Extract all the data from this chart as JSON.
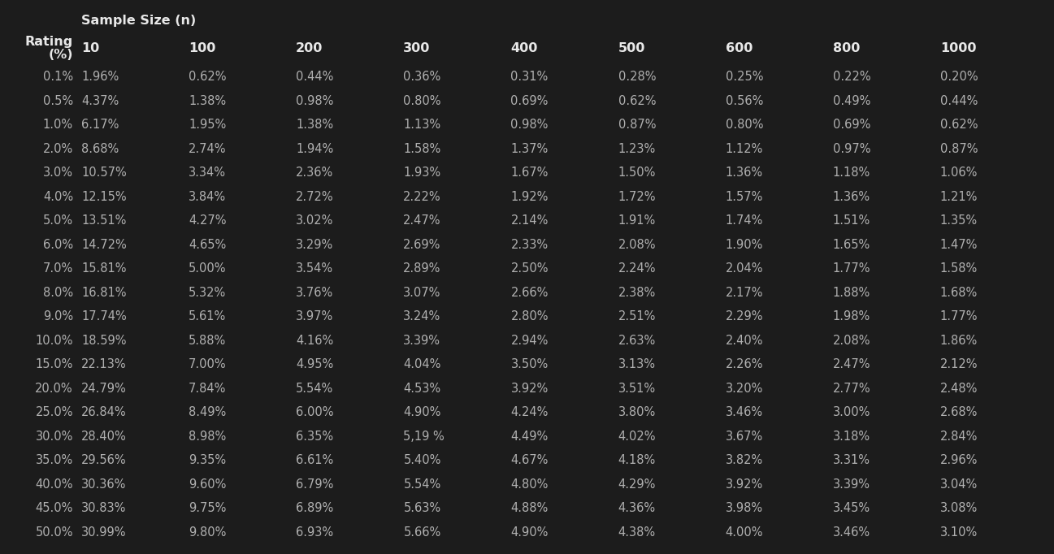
{
  "sample_sizes": [
    "10",
    "100",
    "200",
    "300",
    "400",
    "500",
    "600",
    "800",
    "1000"
  ],
  "ratings": [
    "0.1%",
    "0.5%",
    "1.0%",
    "2.0%",
    "3.0%",
    "4.0%",
    "5.0%",
    "6.0%",
    "7.0%",
    "8.0%",
    "9.0%",
    "10.0%",
    "15.0%",
    "20.0%",
    "25.0%",
    "30.0%",
    "35.0%",
    "40.0%",
    "45.0%",
    "50.0%"
  ],
  "table_data": [
    [
      "1.96%",
      "0.62%",
      "0.44%",
      "0.36%",
      "0.31%",
      "0.28%",
      "0.25%",
      "0.22%",
      "0.20%"
    ],
    [
      "4.37%",
      "1.38%",
      "0.98%",
      "0.80%",
      "0.69%",
      "0.62%",
      "0.56%",
      "0.49%",
      "0.44%"
    ],
    [
      "6.17%",
      "1.95%",
      "1.38%",
      "1.13%",
      "0.98%",
      "0.87%",
      "0.80%",
      "0.69%",
      "0.62%"
    ],
    [
      "8.68%",
      "2.74%",
      "1.94%",
      "1.58%",
      "1.37%",
      "1.23%",
      "1.12%",
      "0.97%",
      "0.87%"
    ],
    [
      "10.57%",
      "3.34%",
      "2.36%",
      "1.93%",
      "1.67%",
      "1.50%",
      "1.36%",
      "1.18%",
      "1.06%"
    ],
    [
      "12.15%",
      "3.84%",
      "2.72%",
      "2.22%",
      "1.92%",
      "1.72%",
      "1.57%",
      "1.36%",
      "1.21%"
    ],
    [
      "13.51%",
      "4.27%",
      "3.02%",
      "2.47%",
      "2.14%",
      "1.91%",
      "1.74%",
      "1.51%",
      "1.35%"
    ],
    [
      "14.72%",
      "4.65%",
      "3.29%",
      "2.69%",
      "2.33%",
      "2.08%",
      "1.90%",
      "1.65%",
      "1.47%"
    ],
    [
      "15.81%",
      "5.00%",
      "3.54%",
      "2.89%",
      "2.50%",
      "2.24%",
      "2.04%",
      "1.77%",
      "1.58%"
    ],
    [
      "16.81%",
      "5.32%",
      "3.76%",
      "3.07%",
      "2.66%",
      "2.38%",
      "2.17%",
      "1.88%",
      "1.68%"
    ],
    [
      "17.74%",
      "5.61%",
      "3.97%",
      "3.24%",
      "2.80%",
      "2.51%",
      "2.29%",
      "1.98%",
      "1.77%"
    ],
    [
      "18.59%",
      "5.88%",
      "4.16%",
      "3.39%",
      "2.94%",
      "2.63%",
      "2.40%",
      "2.08%",
      "1.86%"
    ],
    [
      "22.13%",
      "7.00%",
      "4.95%",
      "4.04%",
      "3.50%",
      "3.13%",
      "2.26%",
      "2.47%",
      "2.12%"
    ],
    [
      "24.79%",
      "7.84%",
      "5.54%",
      "4.53%",
      "3.92%",
      "3.51%",
      "3.20%",
      "2.77%",
      "2.48%"
    ],
    [
      "26.84%",
      "8.49%",
      "6.00%",
      "4.90%",
      "4.24%",
      "3.80%",
      "3.46%",
      "3.00%",
      "2.68%"
    ],
    [
      "28.40%",
      "8.98%",
      "6.35%",
      "5,19 %",
      "4.49%",
      "4.02%",
      "3.67%",
      "3.18%",
      "2.84%"
    ],
    [
      "29.56%",
      "9.35%",
      "6.61%",
      "5.40%",
      "4.67%",
      "4.18%",
      "3.82%",
      "3.31%",
      "2.96%"
    ],
    [
      "30.36%",
      "9.60%",
      "6.79%",
      "5.54%",
      "4.80%",
      "4.29%",
      "3.92%",
      "3.39%",
      "3.04%"
    ],
    [
      "30.83%",
      "9.75%",
      "6.89%",
      "5.63%",
      "4.88%",
      "4.36%",
      "3.98%",
      "3.45%",
      "3.08%"
    ],
    [
      "30.99%",
      "9.80%",
      "6.93%",
      "5.66%",
      "4.90%",
      "4.38%",
      "4.00%",
      "3.46%",
      "3.10%"
    ]
  ],
  "header_sample_size": "Sample Size (n)",
  "bg_color": "#1c1c1c",
  "text_color": "#b0b0b0",
  "header_text_color": "#e8e8e8",
  "data_font_size": 10.5,
  "header_font_size": 11.5,
  "ss_label_font_size": 11.5
}
